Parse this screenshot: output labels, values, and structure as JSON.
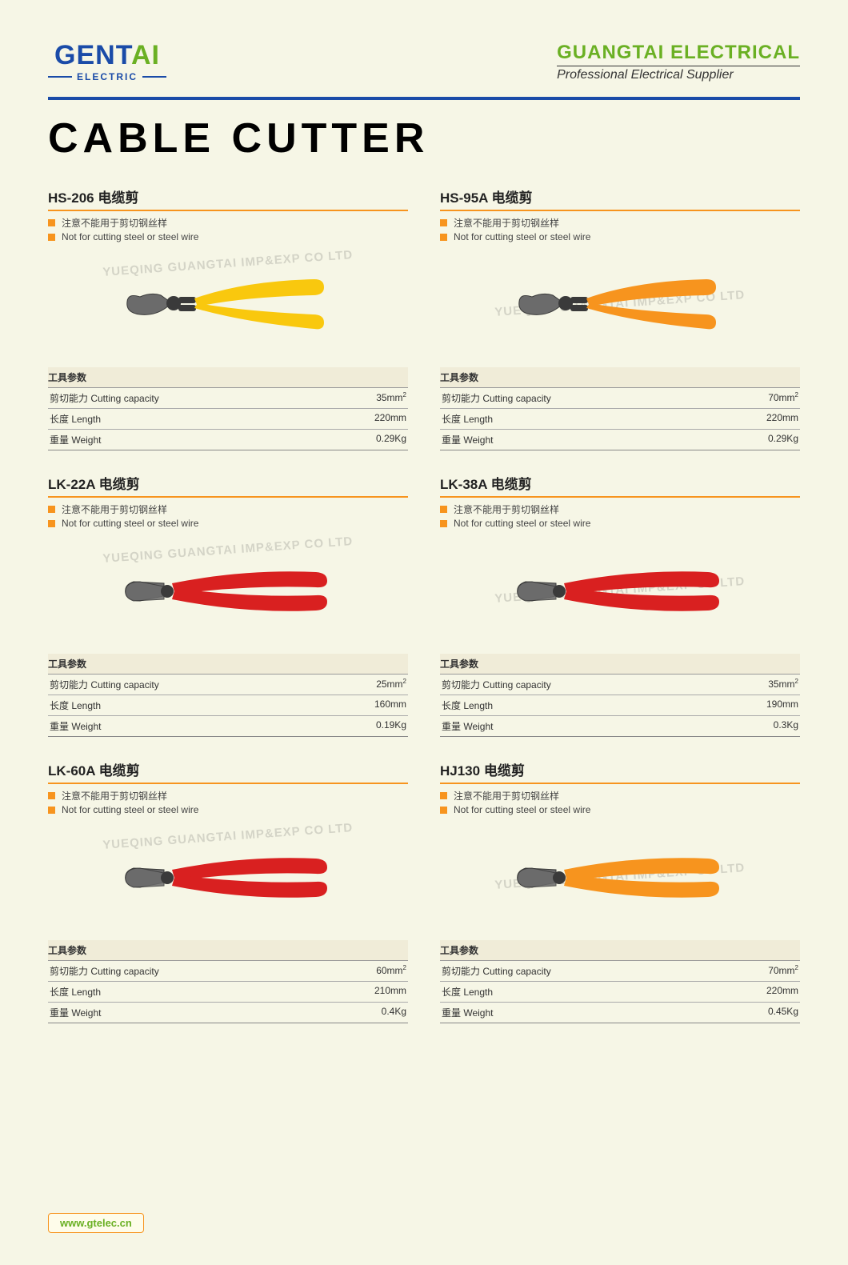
{
  "header": {
    "logo_brand_a": "GENT",
    "logo_brand_b": "AI",
    "logo_sub": "ELECTRIC",
    "company": "GUANGTAI ELECTRICAL",
    "tagline": "Professional Electrical Supplier"
  },
  "title": "CABLE CUTTER",
  "watermark": "YUEQING GUANGTAI IMP&EXP CO LTD",
  "spec_labels": {
    "header": "工具参数",
    "capacity": "剪切能力 Cutting capacity",
    "length": "长度 Length",
    "weight": "重量 Weight"
  },
  "note_cn": "注意不能用于剪切钢丝样",
  "note_en": "Not for cutting steel or steel wire",
  "products": [
    {
      "code": "HS-206",
      "name_cn": "电缆剪",
      "handle": "#f9c80e",
      "capacity": "35mm²",
      "length": "220mm",
      "weight": "0.29Kg",
      "style": "a"
    },
    {
      "code": "HS-95A",
      "name_cn": "电缆剪",
      "handle": "#f7941e",
      "capacity": "70mm²",
      "length": "220mm",
      "weight": "0.29Kg",
      "style": "a"
    },
    {
      "code": "LK-22A",
      "name_cn": "电缆剪",
      "handle": "#d92020",
      "capacity": "25mm²",
      "length": "160mm",
      "weight": "0.19Kg",
      "style": "b"
    },
    {
      "code": "LK-38A",
      "name_cn": "电缆剪",
      "handle": "#d92020",
      "capacity": "35mm²",
      "length": "190mm",
      "weight": "0.3Kg",
      "style": "b"
    },
    {
      "code": "LK-60A",
      "name_cn": "电缆剪",
      "handle": "#d92020",
      "capacity": "60mm²",
      "length": "210mm",
      "weight": "0.4Kg",
      "style": "b"
    },
    {
      "code": "HJ130",
      "name_cn": "电缆剪",
      "handle": "#f7941e",
      "capacity": "70mm²",
      "length": "220mm",
      "weight": "0.45Kg",
      "style": "b"
    }
  ],
  "footer": {
    "url": "www.gtelec.cn"
  },
  "colors": {
    "bg": "#f6f6e6",
    "accent": "#f7941e",
    "brand_blue": "#1a4ba8",
    "brand_green": "#6ab023",
    "metal": "#6b6b6b",
    "metal_dark": "#3a3a3a"
  }
}
